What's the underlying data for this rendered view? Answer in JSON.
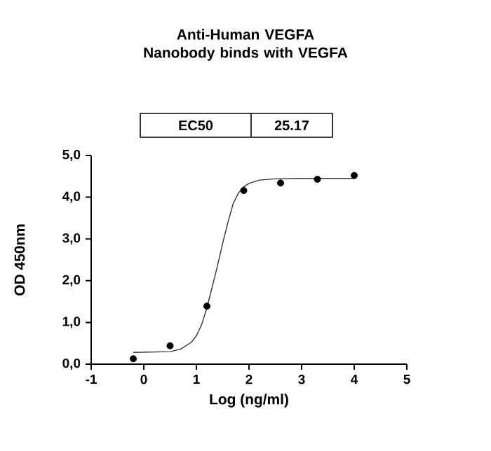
{
  "chart_data": {
    "type": "scatter",
    "title": "Anti-Human VEGFA Nanobody binds with VEGFA",
    "xlabel": "Log (ng/ml)",
    "ylabel": "OD 450nm",
    "annotations": [
      "EC50",
      "25.17"
    ],
    "series": [
      {
        "color": "#000000",
        "marker": "circle",
        "x": [
          -0.2,
          0.5,
          1.2,
          1.9,
          2.6,
          3.3,
          4.0
        ],
        "values": [
          0.13,
          0.44,
          1.39,
          4.16,
          4.34,
          4.43,
          4.52
        ]
      },
      {
        "type": "line",
        "color": "#333333",
        "marker": "none",
        "x": [
          -0.2,
          0.5,
          0.7,
          0.9,
          1.0,
          1.1,
          1.2,
          1.3,
          1.4,
          1.5,
          1.6,
          1.7,
          1.8,
          1.9,
          2.0,
          2.2,
          2.5,
          3.0,
          4.0
        ],
        "values": [
          0.28,
          0.3,
          0.36,
          0.52,
          0.68,
          0.95,
          1.35,
          1.85,
          2.35,
          2.9,
          3.4,
          3.85,
          4.1,
          4.25,
          4.33,
          4.41,
          4.44,
          4.45,
          4.45
        ]
      }
    ],
    "xlim": [
      -1,
      5
    ],
    "xticks": [
      -1,
      0,
      1,
      2,
      3,
      4,
      5
    ],
    "ylim": [
      0,
      5
    ],
    "yticks": [
      {
        "value": 0,
        "label": "0,0"
      },
      {
        "value": 1,
        "label": "1,0"
      },
      {
        "value": 2,
        "label": "2,0"
      },
      {
        "value": 3,
        "label": "3,0"
      },
      {
        "value": 4,
        "label": "4,0"
      },
      {
        "value": 5,
        "label": "5,0"
      }
    ],
    "grid": false
  }
}
